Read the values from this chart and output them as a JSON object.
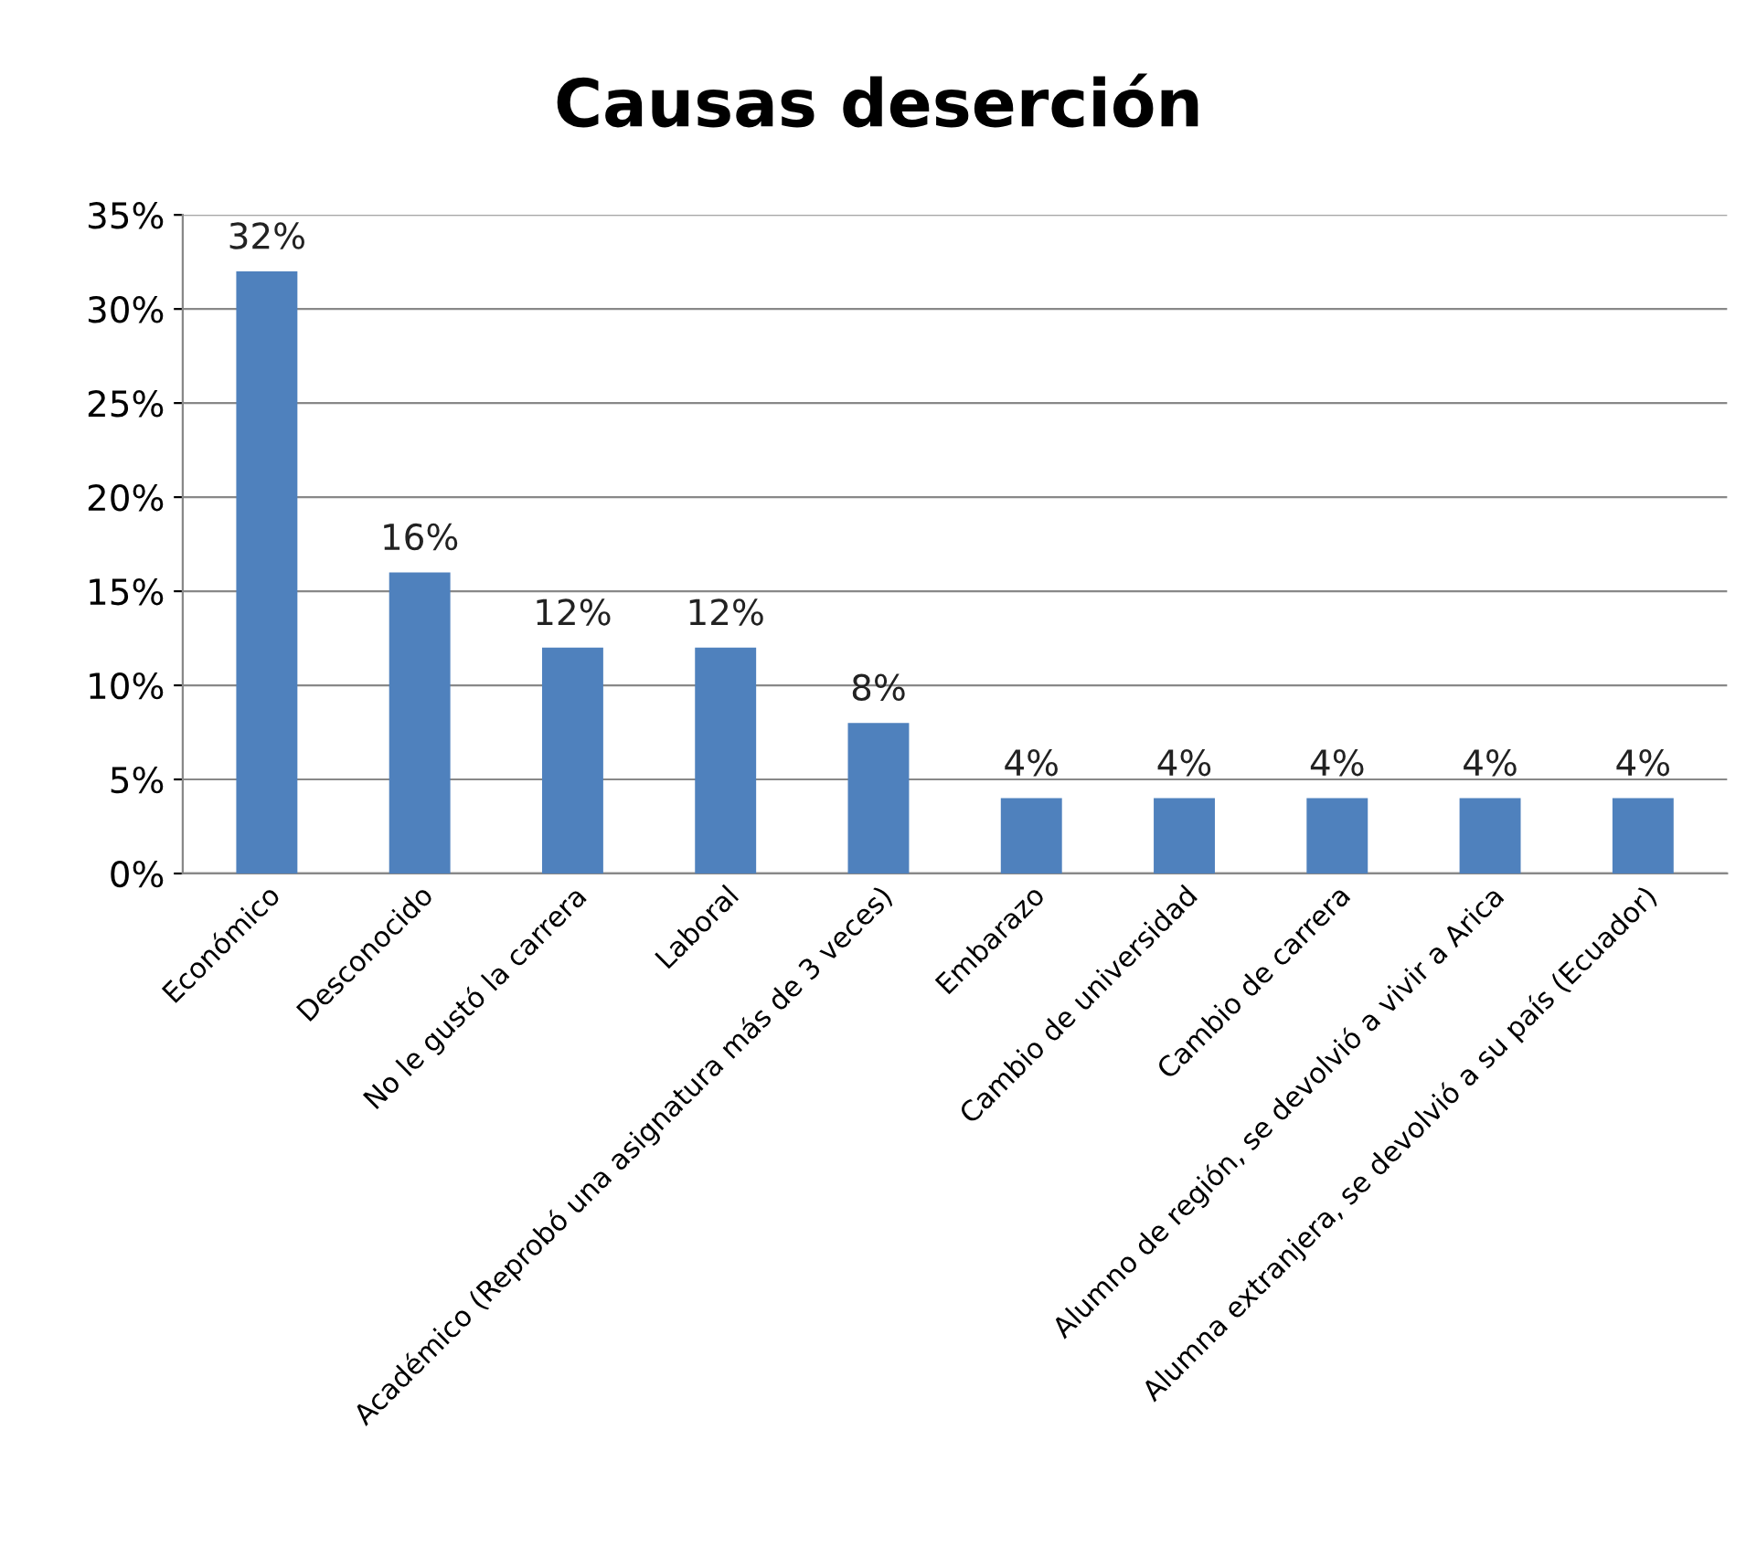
{
  "chart_data": {
    "type": "bar",
    "title": "Causas deserción",
    "categories": [
      "Económico",
      "Desconocido",
      "No le gustó la carrera",
      "Laboral",
      "Académico (Reprobó una asignatura más de 3 veces)",
      "Embarazo",
      "Cambio de universidad",
      "Cambio de carrera",
      "Alumno de región, se devolvió a vivir a Arica",
      "Alumna extranjera, se devolvió a su país (Ecuador)"
    ],
    "values": [
      32,
      16,
      12,
      12,
      8,
      4,
      4,
      4,
      4,
      4
    ],
    "value_labels": [
      "32%",
      "16%",
      "12%",
      "12%",
      "8%",
      "4%",
      "4%",
      "4%",
      "4%",
      "4%"
    ],
    "color": "#4f81bd",
    "ylim": [
      0,
      35
    ],
    "yticks": [
      {
        "value": 0,
        "label": "0%"
      },
      {
        "value": 5,
        "label": "5%"
      },
      {
        "value": 10,
        "label": "10%"
      },
      {
        "value": 15,
        "label": "15%"
      },
      {
        "value": 20,
        "label": "20%"
      },
      {
        "value": 25,
        "label": "25%"
      },
      {
        "value": 30,
        "label": "30%"
      },
      {
        "value": 35,
        "label": "35%"
      }
    ],
    "grid": "y"
  }
}
